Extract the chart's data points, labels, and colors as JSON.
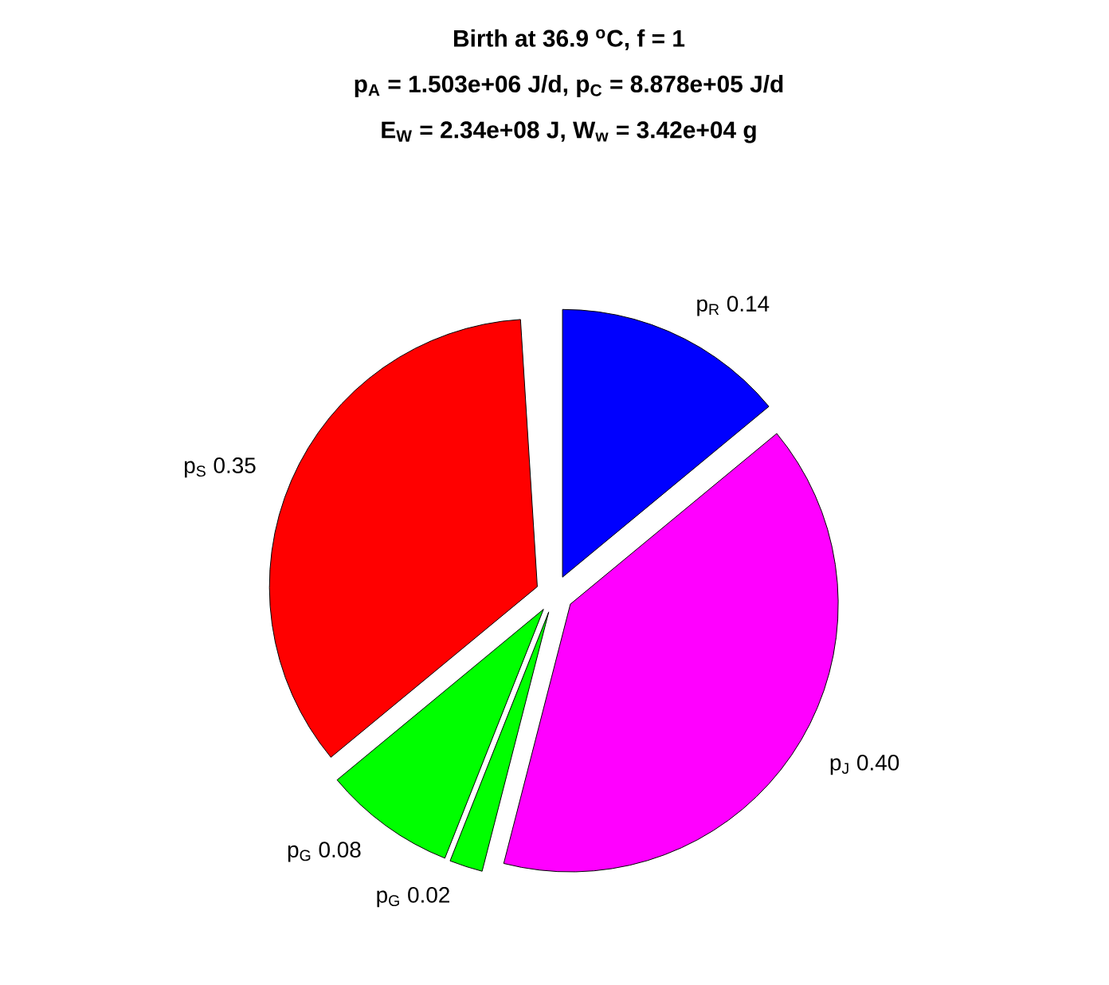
{
  "chart_data": {
    "type": "pie",
    "title": "Birth at 36.9 $^{o}$C, f = 1",
    "subtitle": "p$_{A}$ = 1.503e+06 J/d, p$_{C}$ = 8.878e+05 J/d",
    "annotations": [
      "E$_{W}$ = 2.34e+08 J, W$_{w}$ = 3.42e+04 g"
    ],
    "categories": [
      "p$_{R}$",
      "p$_{J}$",
      "p$_{G}$",
      "p$_{G}$",
      "p$_{S}$"
    ],
    "values": [
      0.14,
      0.4,
      0.02,
      0.08,
      0.35
    ],
    "value_labels": [
      "0.14",
      "0.40",
      "0.02",
      "0.08",
      "0.35"
    ],
    "colors": [
      "#0000ff",
      "#ff00ff",
      "#00ff00",
      "#00ff00",
      "#ff0000"
    ]
  }
}
